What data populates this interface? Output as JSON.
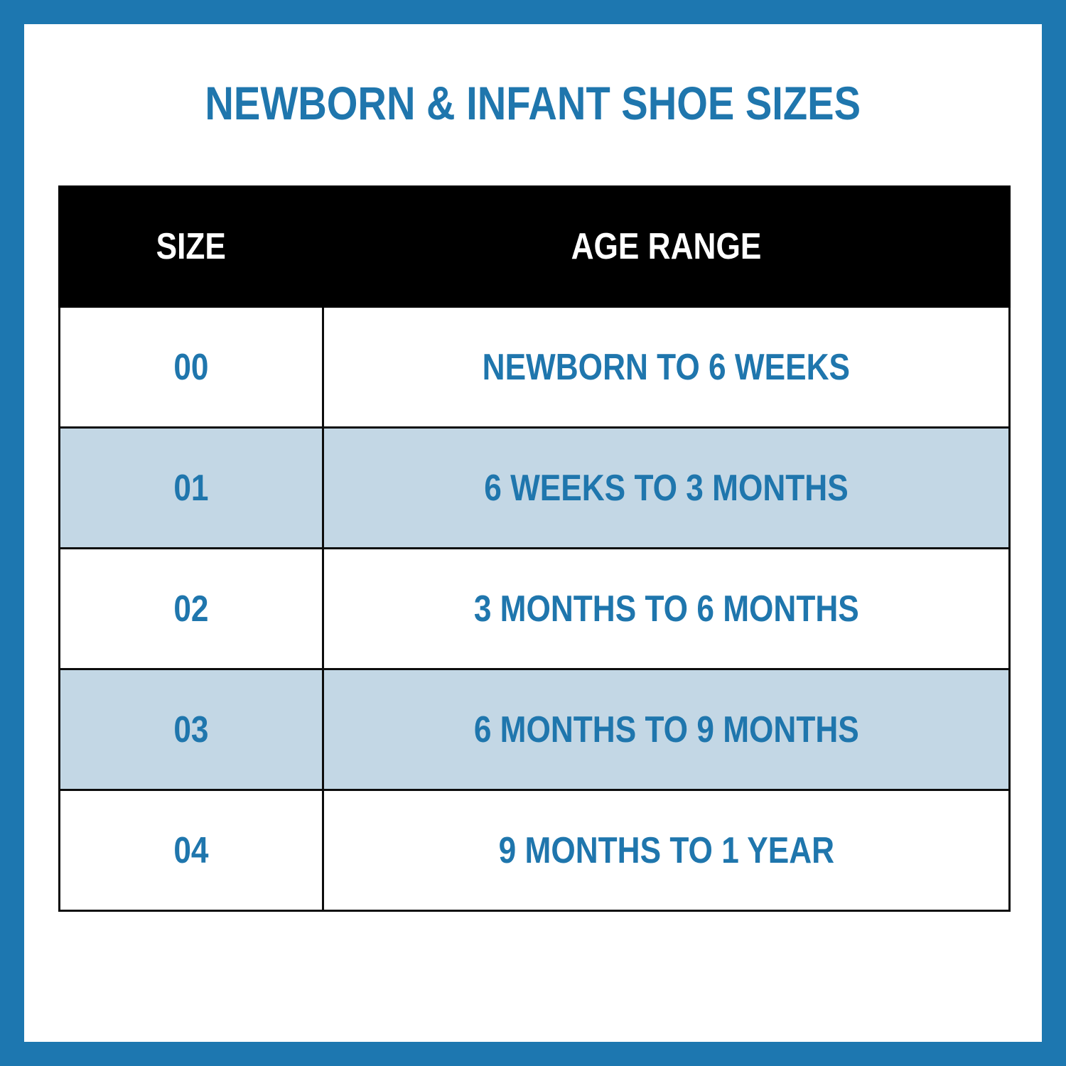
{
  "page": {
    "title": "NEWBORN & INFANT SHOE SIZES"
  },
  "colors": {
    "frame": "#1d77b0",
    "accent_text": "#1f76ad",
    "header_bg": "#000000",
    "header_text": "#ffffff",
    "row_alt": "#c3d7e5",
    "grid_line": "#0d0d0d"
  },
  "chart_data": {
    "type": "table",
    "title": "NEWBORN & INFANT SHOE SIZES",
    "columns": [
      "SIZE",
      "AGE RANGE"
    ],
    "rows": [
      [
        "00",
        "NEWBORN TO 6 WEEKS"
      ],
      [
        "01",
        "6 WEEKS TO 3 MONTHS"
      ],
      [
        "02",
        "3 MONTHS TO 6 MONTHS"
      ],
      [
        "03",
        "6 MONTHS TO 9 MONTHS"
      ],
      [
        "04",
        "9 MONTHS TO 1 YEAR"
      ]
    ],
    "highlighted_row_indices": [
      1,
      3
    ],
    "layout": "two-column centered table, black header band, alternating white / light-blue rows, blue outer frame"
  },
  "table": {
    "header": {
      "size_label": "SIZE",
      "age_range_label": "AGE RANGE"
    },
    "rows": [
      {
        "size": "00",
        "age_range": "NEWBORN TO 6 WEEKS",
        "highlighted": false
      },
      {
        "size": "01",
        "age_range": "6 WEEKS TO 3 MONTHS",
        "highlighted": true
      },
      {
        "size": "02",
        "age_range": "3 MONTHS TO 6 MONTHS",
        "highlighted": false
      },
      {
        "size": "03",
        "age_range": "6 MONTHS TO 9 MONTHS",
        "highlighted": true
      },
      {
        "size": "04",
        "age_range": "9 MONTHS TO 1 YEAR",
        "highlighted": false
      }
    ]
  }
}
